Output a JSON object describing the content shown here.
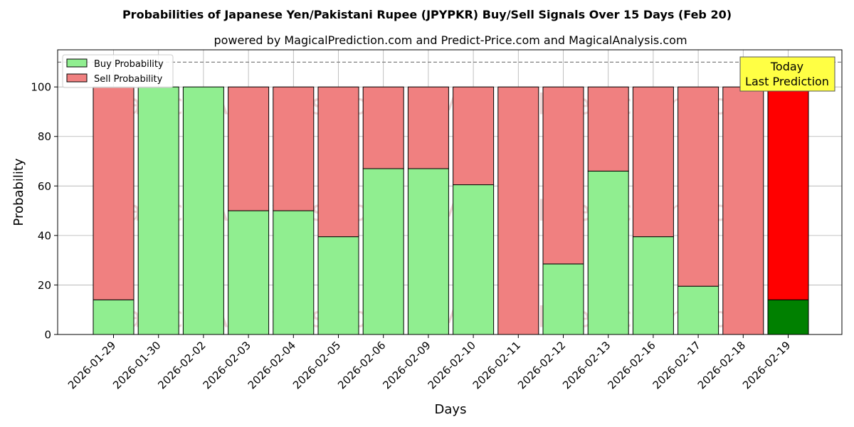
{
  "chart_data": {
    "type": "bar",
    "stacked": true,
    "title": "Probabilities of Japanese Yen/Pakistani Rupee (JPYPKR) Buy/Sell Signals Over 15 Days (Feb 20)",
    "subtitle": "powered by MagicalPrediction.com and Predict-Price.com and MagicalAnalysis.com",
    "xlabel": "Days",
    "ylabel": "Probability",
    "ylim": [
      0,
      115
    ],
    "yticks": [
      0,
      20,
      40,
      60,
      80,
      100
    ],
    "reference_line": 110,
    "grid": true,
    "legend_position": "top-left",
    "categories": [
      "2026-01-29",
      "2026-01-30",
      "2026-02-02",
      "2026-02-03",
      "2026-02-04",
      "2026-02-05",
      "2026-02-06",
      "2026-02-09",
      "2026-02-10",
      "2026-02-11",
      "2026-02-12",
      "2026-02-13",
      "2026-02-16",
      "2026-02-17",
      "2026-02-18",
      "2026-02-19"
    ],
    "series": [
      {
        "name": "Buy Probability",
        "color": "#90ee90",
        "values": [
          14,
          100,
          100,
          50,
          50,
          39.5,
          67,
          67,
          60.5,
          0,
          28.5,
          66,
          39.5,
          19.5,
          0,
          14
        ]
      },
      {
        "name": "Sell Probability",
        "color": "#f08080",
        "values": [
          86,
          0,
          0,
          50,
          50,
          60.5,
          33,
          33,
          39.5,
          100,
          71.5,
          34,
          60.5,
          80.5,
          100,
          86
        ]
      }
    ],
    "highlight": {
      "index": 15,
      "buy_color": "#008000",
      "sell_color": "#ff0000"
    },
    "annotation": {
      "line1": "Today",
      "line2": "Last Prediction",
      "color": "#ffff44"
    },
    "watermarks": [
      "MagicalAnalysis.com",
      "MagicalPrediction.com"
    ]
  }
}
